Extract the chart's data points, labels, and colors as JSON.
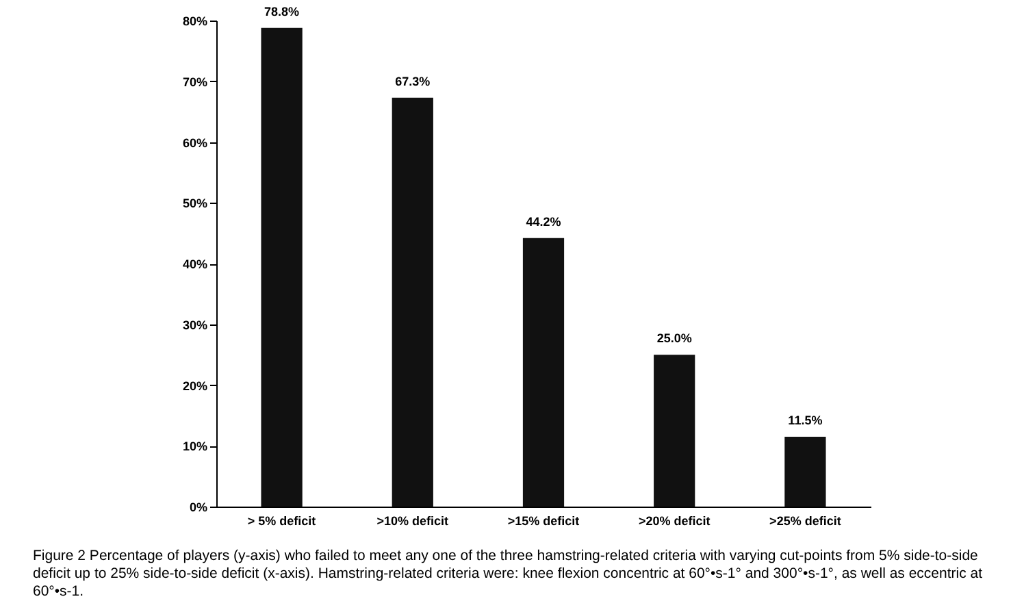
{
  "chart_data": {
    "type": "bar",
    "categories": [
      "> 5% deficit",
      ">10% deficit",
      ">15% deficit",
      ">20% deficit",
      ">25% deficit"
    ],
    "values": [
      78.8,
      67.3,
      44.2,
      25.0,
      11.5
    ],
    "value_labels": [
      "78.8%",
      "67.3%",
      "44.2%",
      "25.0%",
      "11.5%"
    ],
    "color": "#111111",
    "ylim": [
      0,
      80
    ],
    "yticks": [
      {
        "value": 0,
        "label": "0%"
      },
      {
        "value": 10,
        "label": "10%"
      },
      {
        "value": 20,
        "label": "20%"
      },
      {
        "value": 30,
        "label": "30%"
      },
      {
        "value": 40,
        "label": "40%"
      },
      {
        "value": 50,
        "label": "50%"
      },
      {
        "value": 60,
        "label": "60%"
      },
      {
        "value": 70,
        "label": "70%"
      },
      {
        "value": 80,
        "label": "80%"
      }
    ],
    "grid": false,
    "annotations": [
      "Figure 2   Percentage of players (y-axis) who failed to meet any one of the three hamstring-related criteria with varying cut-points from 5% side-to-side deficit up to 25% side-to-side deficit (x-axis). Hamstring-related criteria were: knee flexion concentric at 60°•s-1° and 300°•s-1°, as well as eccentric at 60°•s-1."
    ]
  }
}
